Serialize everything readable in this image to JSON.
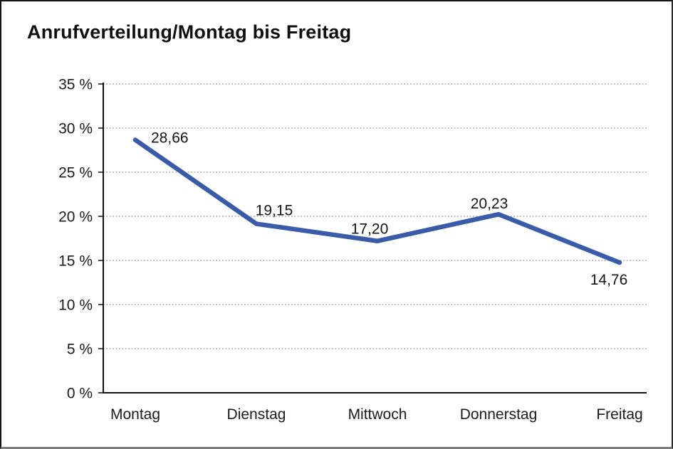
{
  "window": {
    "background": "#ffffff",
    "border_color": "#141414"
  },
  "chart_data": {
    "type": "line",
    "title": "Anrufverteilung/Montag bis Freitag",
    "categories": [
      "Montag",
      "Dienstag",
      "Mittwoch",
      "Donnerstag",
      "Freitag"
    ],
    "values": [
      28.66,
      19.15,
      17.2,
      20.23,
      14.76
    ],
    "value_labels": [
      "28,66",
      "19,15",
      "17,20",
      "20,23",
      "14,76"
    ],
    "xlabel": "",
    "ylabel": "",
    "ylim": [
      0,
      35
    ],
    "yticks": [
      0,
      5,
      10,
      15,
      20,
      25,
      30,
      35
    ],
    "ytick_labels": [
      "0 %",
      "5 %",
      "10 %",
      "15 %",
      "20 %",
      "25 %",
      "30 %",
      "35 %"
    ],
    "grid": "dotted-horizontal",
    "legend": "none",
    "line_color": "#3A5BA8",
    "grid_color": "#8a8a8a",
    "axis_color": "#111111",
    "text_color": "#1a1a1a"
  }
}
